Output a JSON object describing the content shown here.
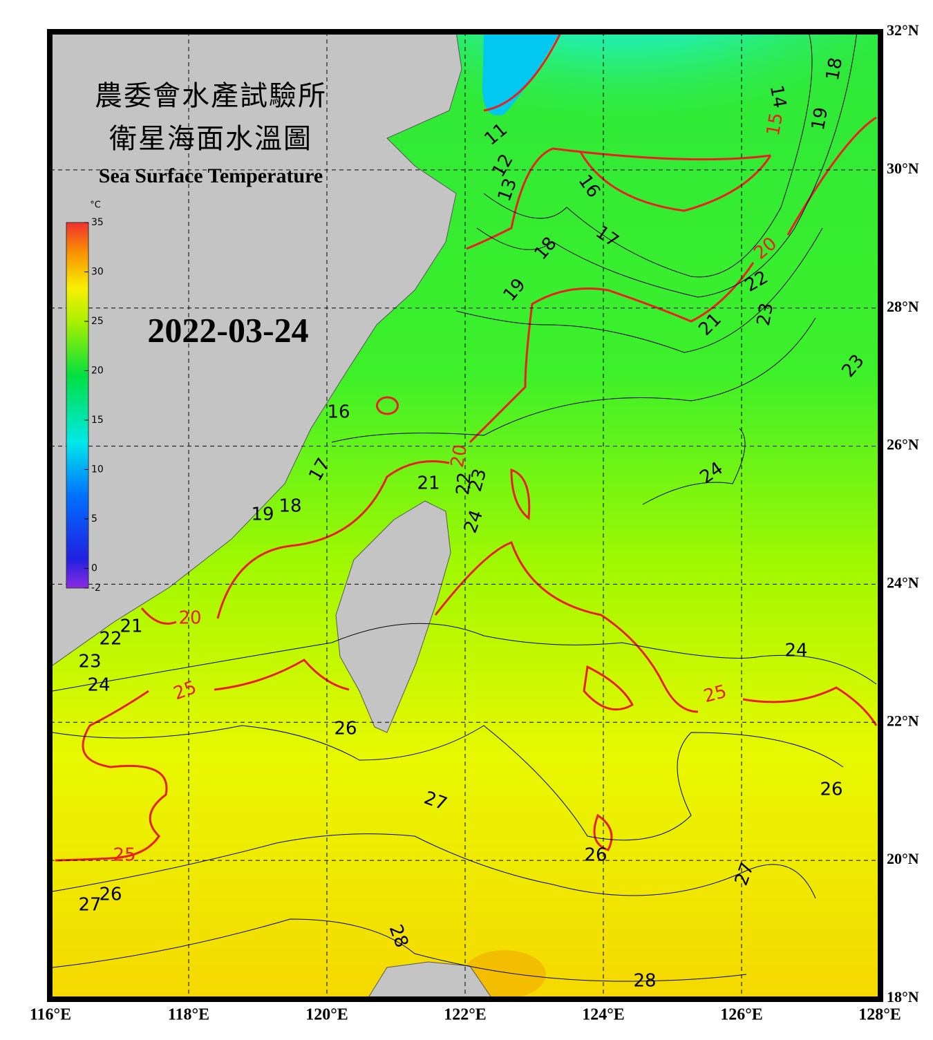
{
  "header": {
    "title_zh": "農委會水產試驗所",
    "subtitle_zh": "衛星海面水溫圖",
    "title_en": "Sea Surface Temperature"
  },
  "date": "2022-03-24",
  "colorbar": {
    "unit": "°C",
    "range": [
      -2,
      35
    ],
    "ticks": [
      35,
      30,
      25,
      20,
      15,
      10,
      5,
      0,
      -2
    ]
  },
  "map": {
    "lon_range": [
      116,
      128
    ],
    "lat_range": [
      18,
      32
    ],
    "lon_ticks": [
      {
        "value": 116,
        "label": "116°E"
      },
      {
        "value": 118,
        "label": "118°E"
      },
      {
        "value": 120,
        "label": "120°E"
      },
      {
        "value": 122,
        "label": "122°E"
      },
      {
        "value": 124,
        "label": "124°E"
      },
      {
        "value": 126,
        "label": "126°E"
      },
      {
        "value": 128,
        "label": "128°E"
      }
    ],
    "lat_ticks": [
      {
        "value": 32,
        "label": "32°N"
      },
      {
        "value": 30,
        "label": "30°N"
      },
      {
        "value": 28,
        "label": "28°N"
      },
      {
        "value": 26,
        "label": "26°N"
      },
      {
        "value": 24,
        "label": "24°N"
      },
      {
        "value": 22,
        "label": "22°N"
      },
      {
        "value": 20,
        "label": "20°N"
      },
      {
        "value": 18,
        "label": "18°N"
      }
    ],
    "major_contour_color": "#e82020",
    "minor_contour_color": "#000000",
    "contour_labels": [
      {
        "value": 15,
        "major": true
      },
      {
        "value": 20,
        "major": true
      },
      {
        "value": 20,
        "major": true
      },
      {
        "value": 20,
        "major": true
      },
      {
        "value": 25,
        "major": true
      },
      {
        "value": 25,
        "major": true
      },
      {
        "value": 25,
        "major": true
      },
      {
        "value": 11,
        "major": false
      },
      {
        "value": 12,
        "major": false
      },
      {
        "value": 13,
        "major": false
      },
      {
        "value": 14,
        "major": false
      },
      {
        "value": 16,
        "major": false
      },
      {
        "value": 17,
        "major": false
      },
      {
        "value": 18,
        "major": false
      },
      {
        "value": 19,
        "major": false
      },
      {
        "value": 18,
        "major": false
      },
      {
        "value": 19,
        "major": false
      },
      {
        "value": 21,
        "major": false
      },
      {
        "value": 22,
        "major": false
      },
      {
        "value": 23,
        "major": false
      },
      {
        "value": 23,
        "major": false
      },
      {
        "value": 24,
        "major": false
      },
      {
        "value": 16,
        "major": false
      },
      {
        "value": 17,
        "major": false
      },
      {
        "value": 18,
        "major": false
      },
      {
        "value": 19,
        "major": false
      },
      {
        "value": 21,
        "major": false
      },
      {
        "value": 22,
        "major": false
      },
      {
        "value": 23,
        "major": false
      },
      {
        "value": 24,
        "major": false
      },
      {
        "value": 21,
        "major": false
      },
      {
        "value": 22,
        "major": false
      },
      {
        "value": 23,
        "major": false
      },
      {
        "value": 24,
        "major": false
      },
      {
        "value": 24,
        "major": false
      },
      {
        "value": 26,
        "major": false
      },
      {
        "value": 26,
        "major": false
      },
      {
        "value": 27,
        "major": false
      },
      {
        "value": 26,
        "major": false
      },
      {
        "value": 27,
        "major": false
      },
      {
        "value": 26,
        "major": false
      },
      {
        "value": 27,
        "major": false
      },
      {
        "value": 28,
        "major": false
      },
      {
        "value": 28,
        "major": false
      }
    ]
  }
}
